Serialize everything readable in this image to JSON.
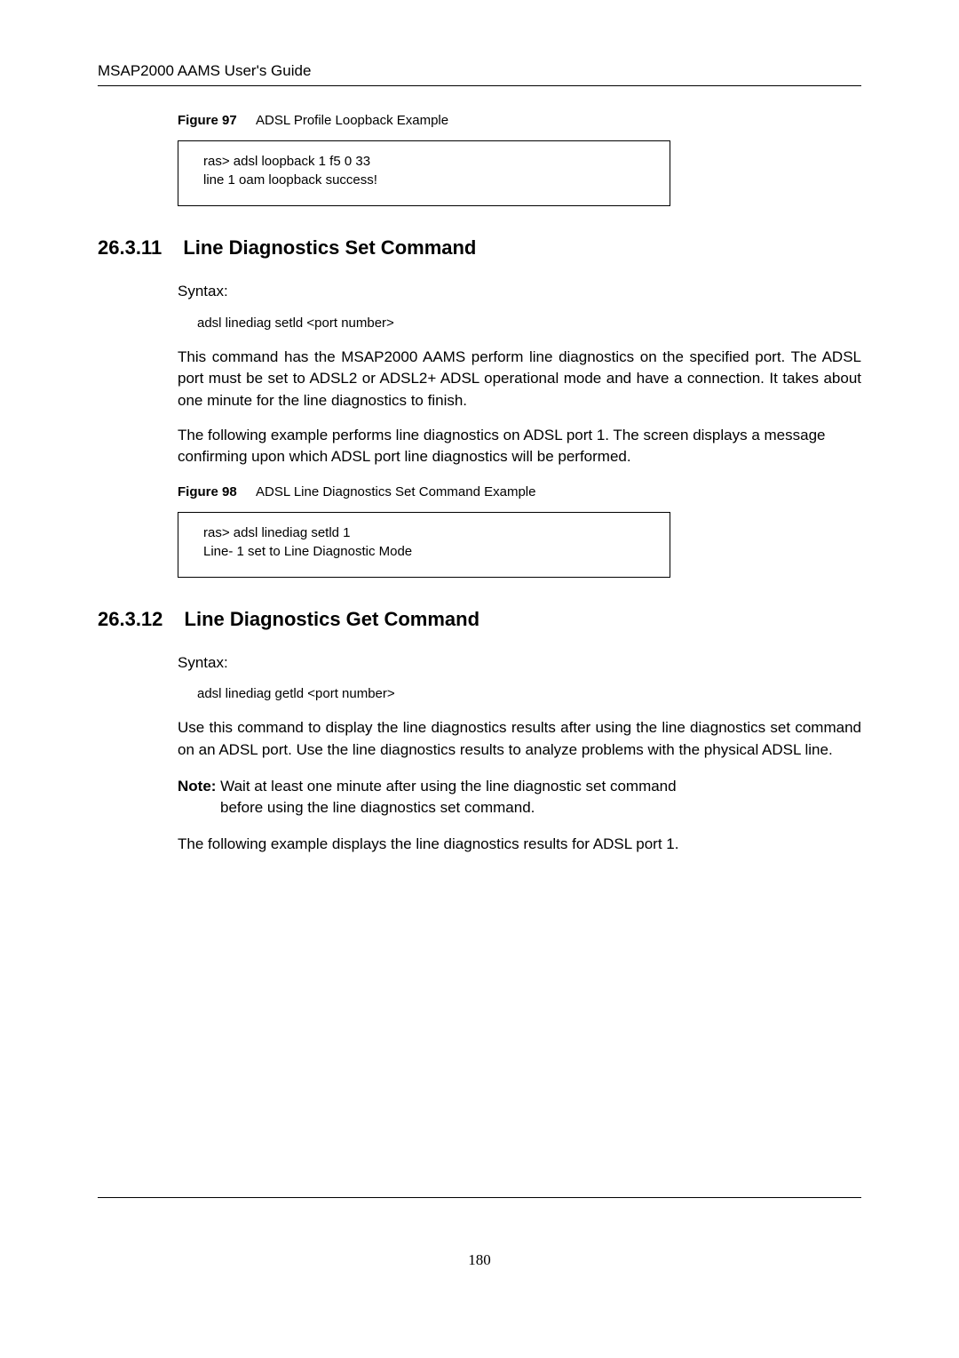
{
  "header": {
    "title": "MSAP2000 AAMS User's Guide"
  },
  "fig97": {
    "label": "Figure 97",
    "caption": "ADSL Profile Loopback Example",
    "code_line1": "ras> adsl loopback 1 f5 0 33",
    "code_line2": "line 1 oam loopback success!"
  },
  "sec11": {
    "number": "26.3.11",
    "title": "Line Diagnostics Set Command",
    "syntax_label": "Syntax:",
    "syntax": "adsl linediag setld <port number>",
    "para1": "This command has the MSAP2000 AAMS perform line diagnostics on the specified port. The ADSL port must be set to ADSL2 or ADSL2+ ADSL operational mode and have a connection. It takes about one minute for the line diagnostics to finish.",
    "para2": "The following example performs line diagnostics on ADSL port 1. The screen displays a message confirming upon which ADSL port line diagnostics will be performed."
  },
  "fig98": {
    "label": "Figure 98",
    "caption": "ADSL Line Diagnostics Set Command Example",
    "code_line1": "ras> adsl linediag setld 1",
    "code_line2": "Line- 1 set to Line Diagnostic Mode"
  },
  "sec12": {
    "number": "26.3.12",
    "title": "Line Diagnostics Get Command",
    "syntax_label": "Syntax:",
    "syntax": "adsl linediag getld <port number>",
    "para1": "Use this command to display the line diagnostics results after using the line diagnostics set command on an ADSL port. Use the line diagnostics results to analyze problems with the physical ADSL line.",
    "note_bold": "Note:",
    "note_line1": " Wait at least one minute after using the line diagnostic set command",
    "note_line2": "before using the line diagnostics set command.",
    "para2": "The following example displays the line diagnostics results for ADSL port 1."
  },
  "footer": {
    "page_number": "180"
  }
}
